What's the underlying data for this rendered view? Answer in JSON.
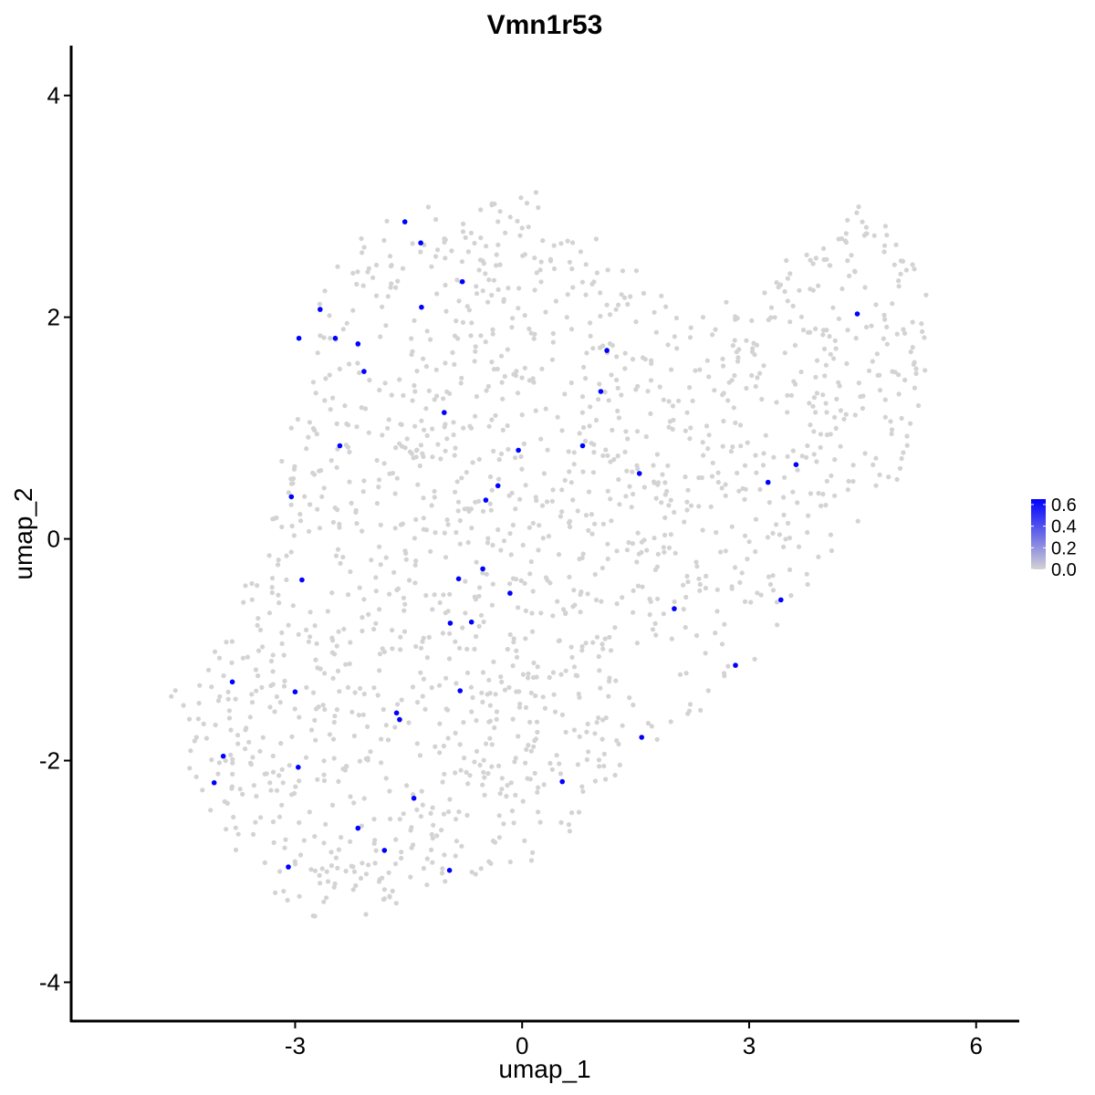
{
  "chart_data": {
    "type": "scatter",
    "title": "Vmn1r53",
    "xlabel": "umap_1",
    "ylabel": "umap_2",
    "xlim": [
      -5.96,
      6.57
    ],
    "ylim": [
      -4.35,
      4.45
    ],
    "x_ticks": [
      -3,
      0,
      3,
      6
    ],
    "y_ticks": [
      -4,
      -2,
      0,
      2,
      4
    ],
    "x_tick_labels": [
      "-3",
      "0",
      "3",
      "6"
    ],
    "y_tick_labels": [
      "-4",
      "-2",
      "0",
      "2",
      "4"
    ],
    "grid": false,
    "legend": {
      "type": "colorbar",
      "placement": "right",
      "range": [
        0.0,
        0.65
      ],
      "ticks": [
        0.0,
        0.2,
        0.4,
        0.6
      ],
      "tick_labels": [
        "0.0",
        "0.2",
        "0.4",
        "0.6"
      ],
      "low_color": "#d3d3d3",
      "high_color": "#0000ff"
    },
    "background_color": "#d3d3d3",
    "expressing_color": "#0000ff",
    "background_cell_count": 1650,
    "background_region": {
      "description": "cloud of non-expressing cells (expression 0.0)",
      "x_range": [
        -4.8,
        5.4
      ],
      "y_range": [
        -3.5,
        3.15
      ]
    },
    "points": [
      {
        "x": -1.55,
        "y": 2.86,
        "value": 0.62
      },
      {
        "x": -1.34,
        "y": 2.67,
        "value": 0.62
      },
      {
        "x": -0.79,
        "y": 2.32,
        "value": 0.62
      },
      {
        "x": -2.67,
        "y": 2.07,
        "value": 0.62
      },
      {
        "x": -1.33,
        "y": 2.09,
        "value": 0.62
      },
      {
        "x": 4.43,
        "y": 2.03,
        "value": 0.62
      },
      {
        "x": -2.95,
        "y": 1.81,
        "value": 0.62
      },
      {
        "x": -2.47,
        "y": 1.81,
        "value": 0.62
      },
      {
        "x": -2.17,
        "y": 1.76,
        "value": 0.62
      },
      {
        "x": 1.12,
        "y": 1.7,
        "value": 0.62
      },
      {
        "x": -2.09,
        "y": 1.51,
        "value": 0.62
      },
      {
        "x": 1.04,
        "y": 1.33,
        "value": 0.62
      },
      {
        "x": -1.03,
        "y": 1.14,
        "value": 0.62
      },
      {
        "x": 0.8,
        "y": 0.84,
        "value": 0.62
      },
      {
        "x": -2.41,
        "y": 0.84,
        "value": 0.62
      },
      {
        "x": -0.05,
        "y": 0.8,
        "value": 0.62
      },
      {
        "x": 3.62,
        "y": 0.67,
        "value": 0.62
      },
      {
        "x": 1.55,
        "y": 0.59,
        "value": 0.62
      },
      {
        "x": 3.25,
        "y": 0.51,
        "value": 0.62
      },
      {
        "x": -0.32,
        "y": 0.48,
        "value": 0.62
      },
      {
        "x": -3.05,
        "y": 0.38,
        "value": 0.62
      },
      {
        "x": -0.48,
        "y": 0.35,
        "value": 0.62
      },
      {
        "x": -2.91,
        "y": -0.37,
        "value": 0.62
      },
      {
        "x": -0.52,
        "y": -0.27,
        "value": 0.62
      },
      {
        "x": -0.84,
        "y": -0.36,
        "value": 0.62
      },
      {
        "x": -0.16,
        "y": -0.49,
        "value": 0.62
      },
      {
        "x": 3.42,
        "y": -0.55,
        "value": 0.62
      },
      {
        "x": 2.01,
        "y": -0.63,
        "value": 0.62
      },
      {
        "x": -0.95,
        "y": -0.76,
        "value": 0.62
      },
      {
        "x": -0.67,
        "y": -0.75,
        "value": 0.62
      },
      {
        "x": 2.82,
        "y": -1.14,
        "value": 0.62
      },
      {
        "x": -3.83,
        "y": -1.29,
        "value": 0.62
      },
      {
        "x": -3.0,
        "y": -1.38,
        "value": 0.62
      },
      {
        "x": -0.82,
        "y": -1.37,
        "value": 0.62
      },
      {
        "x": -1.66,
        "y": -1.57,
        "value": 0.62
      },
      {
        "x": -1.62,
        "y": -1.63,
        "value": 0.62
      },
      {
        "x": 1.58,
        "y": -1.79,
        "value": 0.62
      },
      {
        "x": -3.95,
        "y": -1.96,
        "value": 0.62
      },
      {
        "x": -2.96,
        "y": -2.06,
        "value": 0.62
      },
      {
        "x": -4.07,
        "y": -2.2,
        "value": 0.62
      },
      {
        "x": 0.53,
        "y": -2.19,
        "value": 0.62
      },
      {
        "x": -1.43,
        "y": -2.34,
        "value": 0.62
      },
      {
        "x": -2.17,
        "y": -2.61,
        "value": 0.62
      },
      {
        "x": -1.82,
        "y": -2.81,
        "value": 0.62
      },
      {
        "x": -3.09,
        "y": -2.96,
        "value": 0.62
      },
      {
        "x": -0.96,
        "y": -2.99,
        "value": 0.62
      }
    ]
  }
}
